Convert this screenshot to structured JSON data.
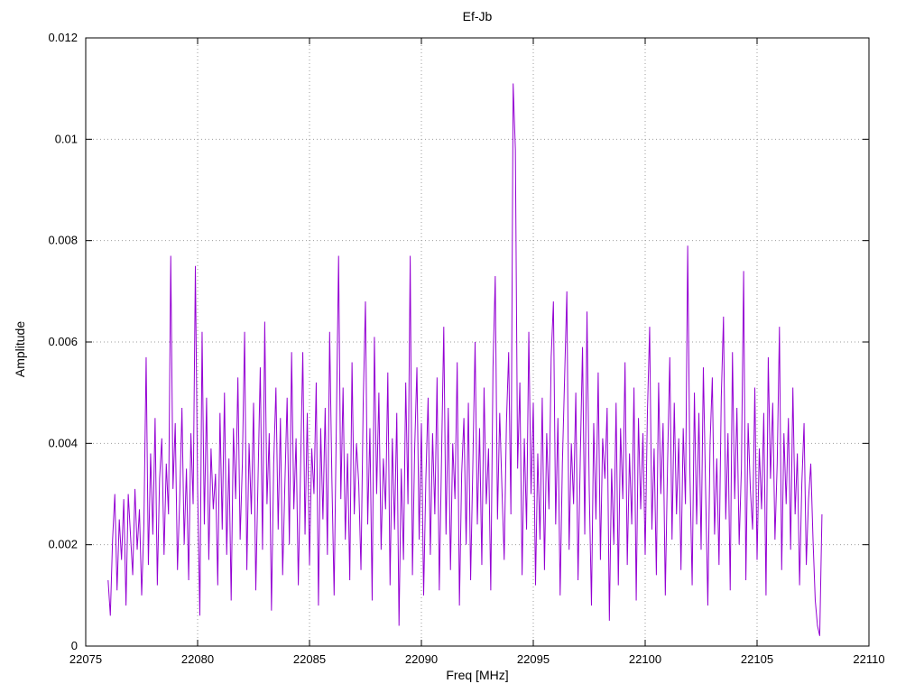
{
  "chart": {
    "title": "Ef-Jb",
    "xlabel": "Freq [MHz]",
    "ylabel": "Amplitude"
  },
  "chart_data": {
    "type": "line",
    "title": "Ef-Jb",
    "xlabel": "Freq [MHz]",
    "ylabel": "Amplitude",
    "xlim": [
      22075,
      22110
    ],
    "ylim": [
      0,
      0.012
    ],
    "x_ticks": [
      22075,
      22080,
      22085,
      22090,
      22095,
      22100,
      22105,
      22110
    ],
    "x_tick_labels": [
      "22075",
      "22080",
      "22085",
      "22090",
      "22095",
      "22100",
      "22105",
      "22110"
    ],
    "y_ticks": [
      0,
      0.002,
      0.004,
      0.006,
      0.008,
      0.01,
      0.012
    ],
    "y_tick_labels": [
      "0",
      "0.002",
      "0.004",
      "0.006",
      "0.008",
      "0.01",
      "0.012"
    ],
    "grid": true,
    "legend": "none",
    "line_color": "#9400d3",
    "x_start": 22076.0,
    "x_step": 0.1,
    "values": [
      0.0013,
      0.0006,
      0.0021,
      0.003,
      0.0011,
      0.0025,
      0.0017,
      0.0029,
      0.0008,
      0.003,
      0.0022,
      0.0014,
      0.0031,
      0.0019,
      0.0027,
      0.001,
      0.0024,
      0.0057,
      0.0016,
      0.0038,
      0.0022,
      0.0045,
      0.0012,
      0.0033,
      0.0041,
      0.0018,
      0.0036,
      0.0026,
      0.0077,
      0.0031,
      0.0044,
      0.0015,
      0.0029,
      0.0047,
      0.002,
      0.0035,
      0.0013,
      0.0042,
      0.0028,
      0.0075,
      0.0031,
      0.0006,
      0.0062,
      0.0024,
      0.0049,
      0.0017,
      0.0039,
      0.0027,
      0.0034,
      0.0012,
      0.0046,
      0.0023,
      0.005,
      0.0018,
      0.0037,
      0.0009,
      0.0043,
      0.0029,
      0.0053,
      0.0021,
      0.0036,
      0.0062,
      0.0015,
      0.004,
      0.0026,
      0.0048,
      0.0011,
      0.0033,
      0.0055,
      0.0019,
      0.0064,
      0.0028,
      0.0042,
      0.0007,
      0.0036,
      0.0051,
      0.0023,
      0.0045,
      0.0014,
      0.0032,
      0.0049,
      0.002,
      0.0058,
      0.0027,
      0.0041,
      0.0012,
      0.0035,
      0.0058,
      0.0022,
      0.0046,
      0.0016,
      0.0039,
      0.003,
      0.0052,
      0.0008,
      0.0043,
      0.0025,
      0.0047,
      0.0018,
      0.0062,
      0.0033,
      0.001,
      0.0044,
      0.0077,
      0.0029,
      0.0051,
      0.0021,
      0.0038,
      0.0013,
      0.0056,
      0.0026,
      0.004,
      0.0032,
      0.0015,
      0.0048,
      0.0068,
      0.0024,
      0.0043,
      0.0009,
      0.0061,
      0.003,
      0.005,
      0.0019,
      0.0037,
      0.0027,
      0.0054,
      0.0012,
      0.0041,
      0.0023,
      0.0046,
      0.0004,
      0.0035,
      0.0017,
      0.0052,
      0.0028,
      0.0077,
      0.0014,
      0.0039,
      0.0055,
      0.0021,
      0.0044,
      0.001,
      0.0033,
      0.0049,
      0.0018,
      0.0042,
      0.0026,
      0.0053,
      0.0011,
      0.0037,
      0.0063,
      0.0022,
      0.0047,
      0.0015,
      0.004,
      0.0029,
      0.0056,
      0.0008,
      0.0034,
      0.0045,
      0.002,
      0.0048,
      0.0013,
      0.0036,
      0.006,
      0.0024,
      0.0043,
      0.0016,
      0.0051,
      0.0028,
      0.0039,
      0.0011,
      0.0055,
      0.0073,
      0.0025,
      0.0046,
      0.0031,
      0.0017,
      0.0044,
      0.0058,
      0.0026,
      0.0111,
      0.0098,
      0.0035,
      0.0052,
      0.0014,
      0.0041,
      0.0023,
      0.0062,
      0.003,
      0.0048,
      0.0012,
      0.0038,
      0.0021,
      0.0049,
      0.0015,
      0.0042,
      0.0027,
      0.0057,
      0.0068,
      0.0024,
      0.0045,
      0.001,
      0.0036,
      0.0053,
      0.007,
      0.0019,
      0.004,
      0.0028,
      0.005,
      0.0013,
      0.0037,
      0.0059,
      0.0022,
      0.0066,
      0.0031,
      0.0008,
      0.0044,
      0.0025,
      0.0054,
      0.0017,
      0.0041,
      0.0033,
      0.0047,
      0.0005,
      0.0035,
      0.002,
      0.0048,
      0.0012,
      0.0043,
      0.0029,
      0.0056,
      0.0016,
      0.0038,
      0.0024,
      0.0051,
      0.0009,
      0.0045,
      0.0027,
      0.0042,
      0.0018,
      0.0046,
      0.0063,
      0.0023,
      0.0039,
      0.0014,
      0.0052,
      0.003,
      0.0044,
      0.001,
      0.0036,
      0.0057,
      0.0021,
      0.0048,
      0.0026,
      0.0041,
      0.0015,
      0.0043,
      0.0028,
      0.0079,
      0.0034,
      0.0012,
      0.005,
      0.0024,
      0.0046,
      0.0019,
      0.0055,
      0.0031,
      0.0008,
      0.004,
      0.0053,
      0.0022,
      0.0037,
      0.0016,
      0.0049,
      0.0065,
      0.0025,
      0.0042,
      0.0011,
      0.0058,
      0.0029,
      0.0047,
      0.002,
      0.0035,
      0.0074,
      0.0013,
      0.0044,
      0.0031,
      0.0023,
      0.0051,
      0.0017,
      0.0039,
      0.0027,
      0.0046,
      0.001,
      0.0057,
      0.0033,
      0.0048,
      0.0021,
      0.0036,
      0.0063,
      0.0015,
      0.0042,
      0.0028,
      0.0045,
      0.0019,
      0.0051,
      0.0026,
      0.0038,
      0.0012,
      0.0032,
      0.0044,
      0.0016,
      0.0029,
      0.0036,
      0.0021,
      0.0009,
      0.0004,
      0.0002,
      0.0026
    ]
  }
}
